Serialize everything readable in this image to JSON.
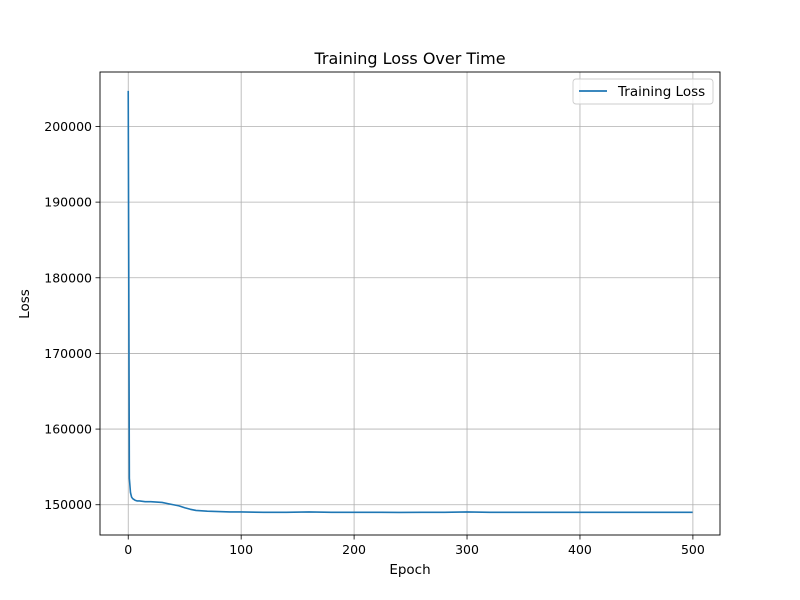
{
  "chart_data": {
    "type": "line",
    "title": "Training Loss Over Time",
    "xlabel": "Epoch",
    "ylabel": "Loss",
    "xlim": [
      -25,
      524
    ],
    "ylim": [
      146000,
      207200
    ],
    "xticks": [
      0,
      100,
      200,
      300,
      400,
      500
    ],
    "yticks": [
      150000,
      160000,
      170000,
      180000,
      190000,
      200000
    ],
    "grid": true,
    "legend": {
      "placement": "top-right",
      "entries": [
        "Training Loss"
      ]
    },
    "series": [
      {
        "name": "Training Loss",
        "color": "#1f77b4",
        "x": [
          0,
          1,
          2,
          3,
          4,
          5,
          6,
          8,
          10,
          15,
          20,
          25,
          30,
          35,
          40,
          45,
          50,
          55,
          60,
          65,
          70,
          80,
          90,
          100,
          120,
          140,
          160,
          180,
          200,
          220,
          240,
          260,
          280,
          300,
          320,
          340,
          360,
          380,
          400,
          420,
          440,
          460,
          480,
          499
        ],
        "y": [
          204600,
          153500,
          151600,
          151000,
          150800,
          150700,
          150600,
          150500,
          150500,
          150400,
          150400,
          150350,
          150300,
          150150,
          150000,
          149850,
          149600,
          149400,
          149250,
          149200,
          149150,
          149100,
          149050,
          149050,
          149000,
          149000,
          149050,
          149000,
          149000,
          149000,
          148980,
          149000,
          149000,
          149050,
          149000,
          149000,
          149000,
          149000,
          149000,
          149000,
          149000,
          149000,
          149000,
          149000
        ]
      }
    ]
  },
  "figure": {
    "background": "#ffffff",
    "grid_color": "#b0b0b0"
  }
}
